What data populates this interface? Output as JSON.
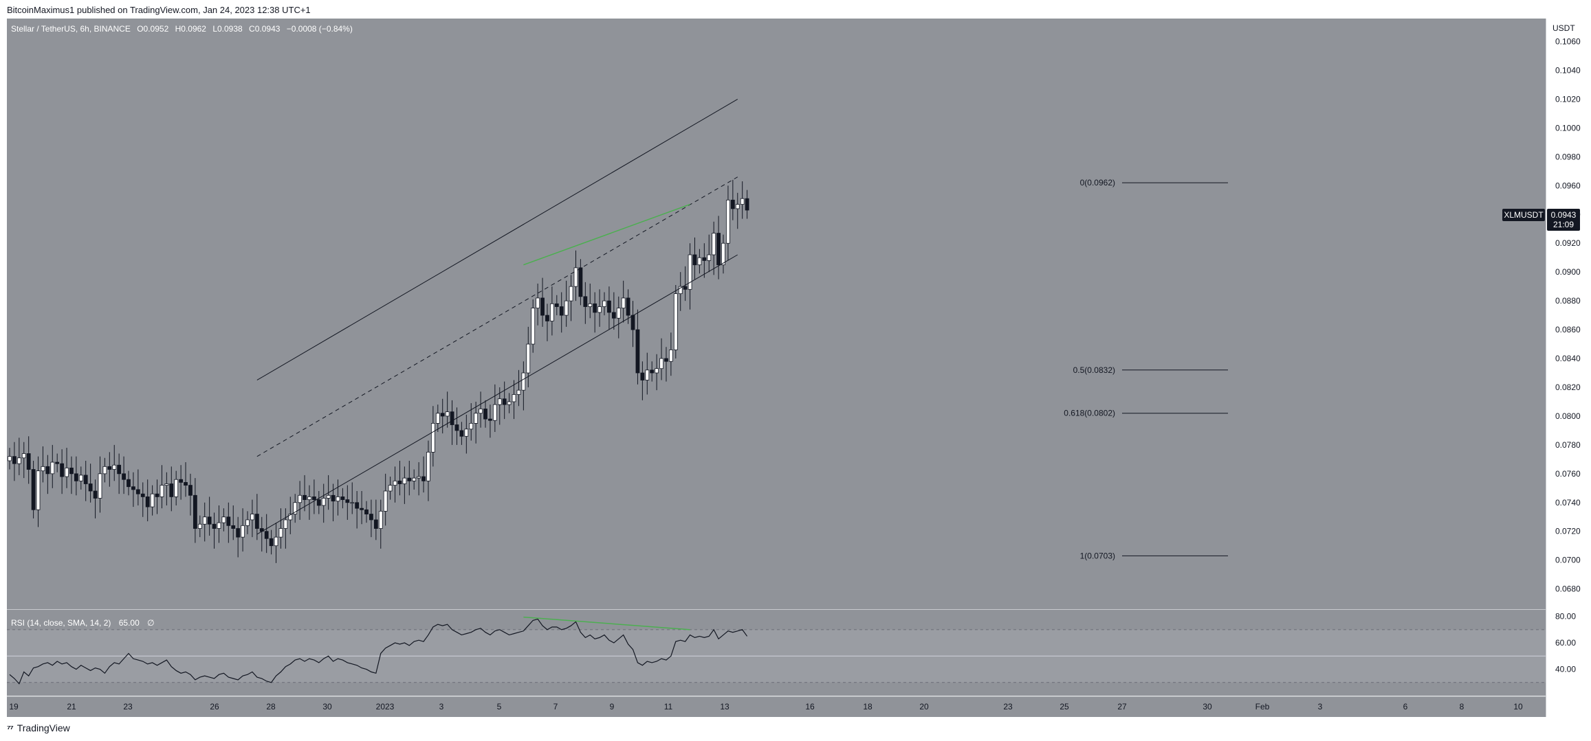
{
  "header": {
    "published_by": "BitcoinMaximus1 published on TradingView.com, Jan 24, 2023 12:38 UTC+1"
  },
  "footer": {
    "brand": "TradingView"
  },
  "colors": {
    "pane_bg": "#909399",
    "up": "#ffffff",
    "down": "#131722",
    "divergence": "#4caf50",
    "channel": "#131722",
    "price_tag_bg": "#131722"
  },
  "legend": {
    "symbol": "Stellar / TetherUS, 6h, BINANCE",
    "o_label": "O",
    "o": "0.0952",
    "h_label": "H",
    "h": "0.0962",
    "l_label": "L",
    "l": "0.0938",
    "c_label": "C",
    "c": "0.0943",
    "change": "−0.0008 (−0.84%)"
  },
  "price_tag": {
    "symbol": "XLMUSDT",
    "price": "0.0943",
    "countdown": "21:09"
  },
  "rsi_legend": {
    "label": "RSI (14, close, SMA, 14, 2)",
    "value": "65.00",
    "extra": "∅"
  },
  "chart_data": [
    {
      "type": "candlestick",
      "title": "Stellar / TetherUS, 6h, BINANCE",
      "y_axis_unit": "USDT",
      "y_ticks": [
        "0.1060",
        "0.1040",
        "0.1020",
        "0.1000",
        "0.0980",
        "0.0960",
        "0.0940",
        "0.0920",
        "0.0900",
        "0.0880",
        "0.0860",
        "0.0840",
        "0.0820",
        "0.0800",
        "0.0780",
        "0.0760",
        "0.0740",
        "0.0720",
        "0.0700",
        "0.0680"
      ],
      "ylim": [
        0.0666,
        0.1076
      ],
      "x_ticks": [
        "19",
        "21",
        "23",
        "26",
        "28",
        "30",
        "2023",
        "3",
        "5",
        "7",
        "9",
        "11",
        "13",
        "16",
        "18",
        "20",
        "23",
        "25",
        "27",
        "30",
        "Feb",
        "3",
        "6",
        "8",
        "10"
      ],
      "candles_close": [
        0.0772,
        0.0767,
        0.0771,
        0.0774,
        0.0763,
        0.0735,
        0.0762,
        0.0765,
        0.076,
        0.0768,
        0.0767,
        0.0758,
        0.0764,
        0.076,
        0.0755,
        0.0759,
        0.0753,
        0.0748,
        0.0743,
        0.076,
        0.0765,
        0.0763,
        0.0766,
        0.076,
        0.0756,
        0.0751,
        0.0749,
        0.0746,
        0.0744,
        0.0737,
        0.0746,
        0.0744,
        0.0752,
        0.0753,
        0.0744,
        0.0756,
        0.0754,
        0.0752,
        0.0745,
        0.0722,
        0.0725,
        0.073,
        0.0725,
        0.0722,
        0.0726,
        0.073,
        0.0724,
        0.0722,
        0.0716,
        0.0724,
        0.0728,
        0.0732,
        0.0722,
        0.072,
        0.0715,
        0.071,
        0.0716,
        0.0722,
        0.0728,
        0.0732,
        0.074,
        0.0745,
        0.0742,
        0.0744,
        0.0742,
        0.0738,
        0.0743,
        0.0745,
        0.0741,
        0.0744,
        0.0742,
        0.074,
        0.074,
        0.0736,
        0.0735,
        0.0732,
        0.0728,
        0.0722,
        0.0734,
        0.0748,
        0.0752,
        0.0755,
        0.0753,
        0.0757,
        0.0755,
        0.0757,
        0.0758,
        0.0755,
        0.0775,
        0.0795,
        0.0802,
        0.08,
        0.0803,
        0.0794,
        0.079,
        0.0786,
        0.0791,
        0.0795,
        0.0802,
        0.0805,
        0.0798,
        0.0797,
        0.0808,
        0.0812,
        0.0808,
        0.081,
        0.0815,
        0.0818,
        0.083,
        0.085,
        0.0875,
        0.0882,
        0.087,
        0.0866,
        0.0878,
        0.0876,
        0.087,
        0.088,
        0.089,
        0.0903,
        0.0883,
        0.0876,
        0.0878,
        0.0872,
        0.0876,
        0.088,
        0.0872,
        0.0868,
        0.0875,
        0.0882,
        0.087,
        0.086,
        0.083,
        0.0825,
        0.0832,
        0.083,
        0.0833,
        0.084,
        0.0838,
        0.0846,
        0.0885,
        0.089,
        0.0888,
        0.0912,
        0.0905,
        0.091,
        0.0908,
        0.0912,
        0.0927,
        0.0905,
        0.092,
        0.095,
        0.0944,
        0.0947,
        0.0951,
        0.0943
      ],
      "series": [
        {
          "name": "XLMUSDT",
          "last": 0.0943
        }
      ],
      "fib_levels": [
        {
          "label": "0(0.0962)",
          "value": 0.0962
        },
        {
          "label": "0.5(0.0832)",
          "value": 0.0832
        },
        {
          "label": "0.618(0.0802)",
          "value": 0.0802
        },
        {
          "label": "1(0.0703)",
          "value": 0.0703
        }
      ],
      "channel": {
        "lower": [
          [
            52,
            0.0718
          ],
          [
            153,
            0.0912
          ]
        ],
        "upper": [
          [
            52,
            0.0825
          ],
          [
            153,
            0.102
          ]
        ],
        "mid_dashed": [
          [
            52,
            0.0772
          ],
          [
            153,
            0.0966
          ]
        ]
      },
      "divergence_price": [
        [
          108,
          0.0905
        ],
        [
          143,
          0.0947
        ]
      ]
    },
    {
      "type": "line",
      "title": "RSI (14, close, SMA, 14, 2)",
      "y_ticks": [
        "80.00",
        "60.00",
        "40.00"
      ],
      "ylim": [
        20,
        85
      ],
      "bands": [
        70,
        50,
        30
      ],
      "values": [
        36,
        33,
        29,
        38,
        35,
        41,
        42,
        44,
        45,
        43,
        46,
        44,
        45,
        42,
        40,
        43,
        41,
        39,
        41,
        40,
        37,
        42,
        45,
        44,
        48,
        52,
        48,
        47,
        46,
        44,
        45,
        43,
        45,
        47,
        42,
        39,
        37,
        38,
        36,
        32,
        34,
        35,
        34,
        33,
        36,
        37,
        34,
        33,
        32,
        35,
        36,
        38,
        34,
        33,
        31,
        30,
        35,
        38,
        42,
        44,
        47,
        48,
        46,
        48,
        47,
        45,
        48,
        50,
        46,
        48,
        47,
        45,
        44,
        43,
        41,
        40,
        38,
        37,
        52,
        56,
        58,
        60,
        59,
        60,
        58,
        61,
        62,
        61,
        66,
        72,
        74,
        73,
        74,
        70,
        68,
        66,
        67,
        68,
        70,
        71,
        68,
        66,
        69,
        70,
        68,
        66,
        67,
        68,
        69,
        73,
        77,
        78,
        73,
        70,
        72,
        72,
        70,
        71,
        73,
        76,
        68,
        64,
        66,
        63,
        64,
        66,
        62,
        60,
        63,
        66,
        59,
        55,
        45,
        43,
        46,
        45,
        46,
        48,
        47,
        50,
        61,
        62,
        61,
        66,
        64,
        65,
        64,
        65,
        70,
        63,
        66,
        69,
        68,
        69,
        70,
        65
      ],
      "divergence": [
        [
          108,
          79.5
        ],
        [
          143,
          70
        ]
      ]
    }
  ]
}
